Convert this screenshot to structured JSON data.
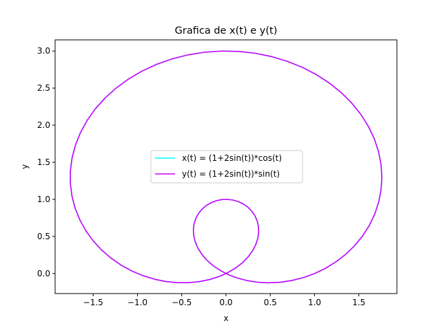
{
  "chart_data": {
    "type": "line",
    "title": "Grafica de x(t) e y(t)",
    "xlabel": "x",
    "ylabel": "y",
    "xlim": [
      -1.93,
      1.93
    ],
    "ylim": [
      -0.27,
      3.15
    ],
    "xticks": [
      -1.5,
      -1.0,
      -0.5,
      0.0,
      0.5,
      1.0,
      1.5
    ],
    "xtick_labels": [
      "−1.5",
      "−1.0",
      "−0.5",
      "0.0",
      "0.5",
      "1.0",
      "1.5"
    ],
    "yticks": [
      0.0,
      0.5,
      1.0,
      1.5,
      2.0,
      2.5,
      3.0
    ],
    "ytick_labels": [
      "0.0",
      "0.5",
      "1.0",
      "1.5",
      "2.0",
      "2.5",
      "3.0"
    ],
    "grid": false,
    "legend_position": "center",
    "t_range": [
      0,
      6.283185307
    ],
    "samples": 100,
    "series": [
      {
        "name": "x(t) = (1+2sin(t))*cos(t)",
        "color": "#00ffff"
      },
      {
        "name": "y(t) = (1+2sin(t))*sin(t)",
        "color": "#cc00ff"
      }
    ]
  }
}
